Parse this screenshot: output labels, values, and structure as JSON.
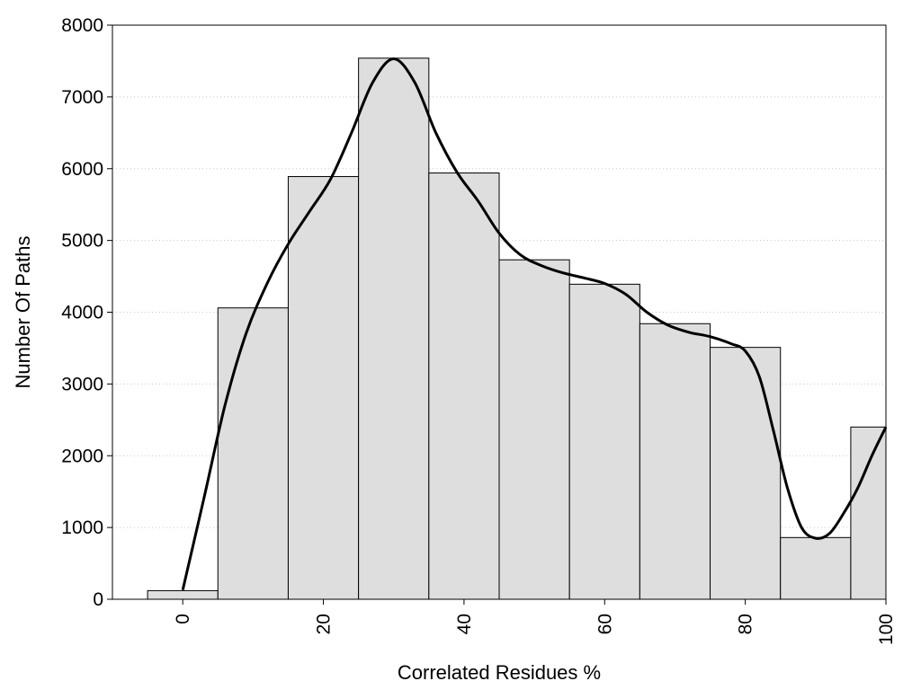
{
  "chart_data": {
    "type": "bar",
    "title": "",
    "xlabel": "Correlated Residues %",
    "ylabel": "Number Of Paths",
    "xlim": [
      -10,
      100
    ],
    "ylim": [
      0,
      8000
    ],
    "x_ticks": [
      0,
      20,
      40,
      60,
      80,
      100
    ],
    "y_ticks": [
      0,
      1000,
      2000,
      3000,
      4000,
      5000,
      6000,
      7000,
      8000
    ],
    "bar_width": 10,
    "bin_centers": [
      0,
      10,
      20,
      30,
      40,
      50,
      60,
      70,
      80,
      90,
      100
    ],
    "values": [
      120,
      4060,
      5890,
      7540,
      5940,
      4730,
      4390,
      3840,
      3510,
      860,
      2400
    ],
    "bar_color": "#dedede",
    "curve": {
      "x": [
        0,
        3,
        6,
        9,
        12,
        15,
        18,
        21,
        24,
        27,
        30,
        33,
        36,
        39,
        42,
        45,
        48,
        51,
        54,
        57,
        60,
        63,
        66,
        69,
        72,
        75,
        78,
        80,
        82,
        84,
        86,
        88,
        90,
        92,
        94,
        96,
        98,
        100
      ],
      "y": [
        130,
        1400,
        2700,
        3700,
        4400,
        4950,
        5400,
        5850,
        6500,
        7200,
        7530,
        7200,
        6500,
        5950,
        5550,
        5100,
        4800,
        4650,
        4550,
        4480,
        4400,
        4250,
        4000,
        3820,
        3720,
        3660,
        3560,
        3460,
        3100,
        2350,
        1550,
        1000,
        850,
        920,
        1200,
        1550,
        2000,
        2400
      ],
      "color": "#000000"
    },
    "grid": "horizontal-dotted"
  }
}
